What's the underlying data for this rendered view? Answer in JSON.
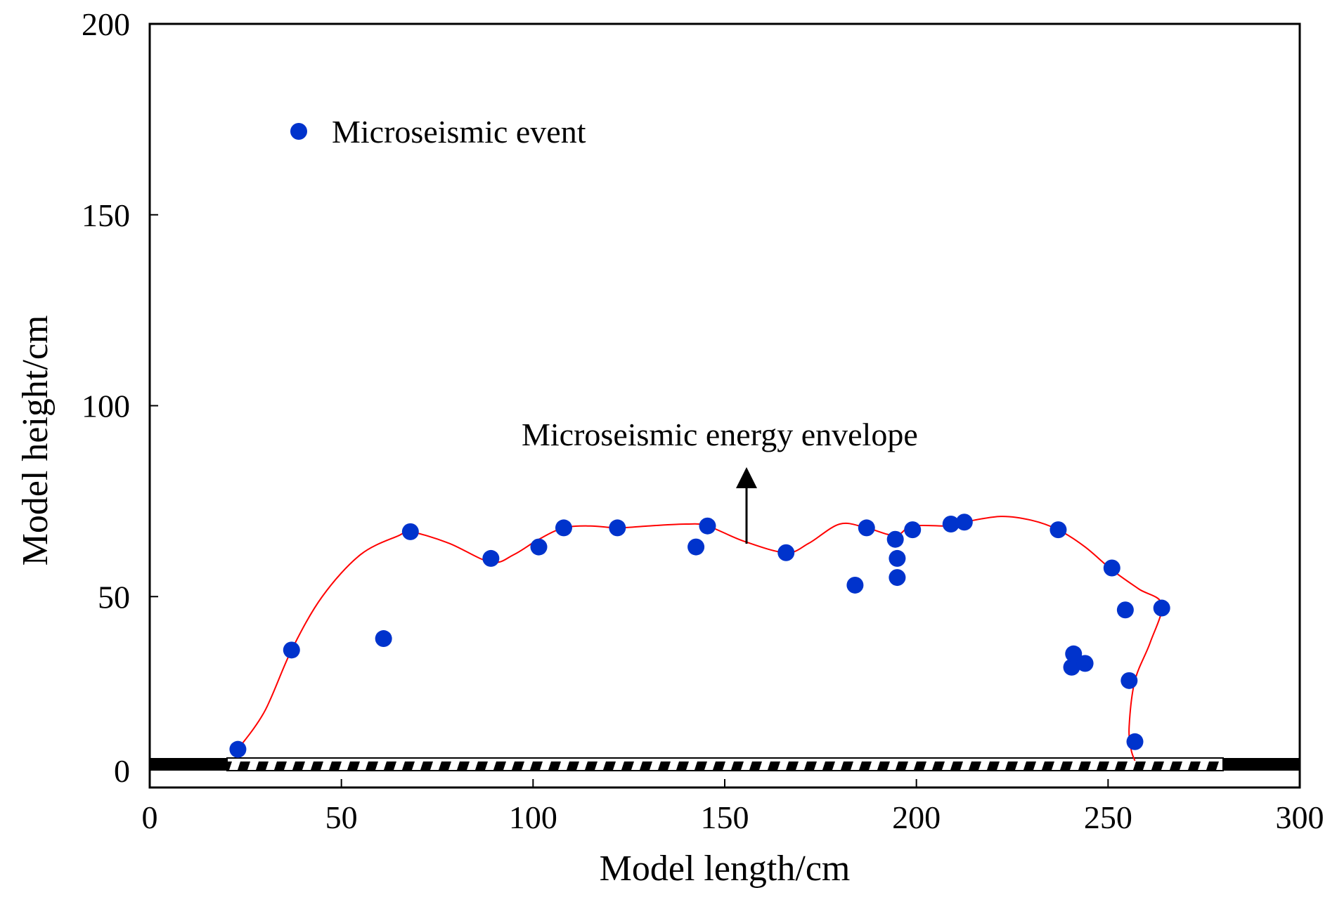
{
  "chart_data": {
    "type": "scatter",
    "title": "",
    "xlabel": "Model length/cm",
    "ylabel": "Model height/cm",
    "xlim": [
      0,
      300
    ],
    "ylim": [
      0,
      200
    ],
    "xticks": [
      0,
      50,
      100,
      150,
      200,
      250,
      300
    ],
    "yticks": [
      0,
      50,
      100,
      150,
      200
    ],
    "xtick_labels": [
      "0",
      "50",
      "100",
      "150",
      "200",
      "250",
      "300"
    ],
    "ytick_labels": [
      "0",
      "50",
      "100",
      "150",
      "200"
    ],
    "grid": false,
    "legend": {
      "entries": [
        "Microseismic event"
      ],
      "placement": "top-left"
    },
    "annotation": "Microseismic energy envelope",
    "marker_color": "#0033cc",
    "envelope_color": "#ff0000",
    "series": [
      {
        "name": "Microseismic event",
        "type": "scatter",
        "x": [
          23,
          37,
          61,
          68,
          89,
          101.5,
          108,
          122,
          142.5,
          145.5,
          166,
          184,
          187,
          194.5,
          195,
          195,
          199,
          209,
          212.5,
          237,
          240.5,
          241,
          244,
          251,
          254.5,
          255.5,
          257,
          264
        ],
        "y": [
          10,
          36,
          39,
          67,
          60,
          63,
          68,
          68,
          63,
          68.5,
          61.5,
          53,
          68,
          65,
          60,
          55,
          67.5,
          69,
          69.5,
          67.5,
          31.5,
          35,
          32.5,
          57.5,
          46.5,
          28,
          12,
          47
        ]
      },
      {
        "name": "Microseismic energy envelope",
        "type": "line",
        "x": [
          23,
          30,
          37,
          45,
          55,
          65,
          68,
          78,
          89,
          95,
          101.5,
          108,
          115,
          122,
          130,
          140,
          145.5,
          155,
          166,
          172,
          180,
          187,
          194.5,
          199,
          209,
          212.5,
          222,
          230,
          237,
          244,
          251,
          258,
          264,
          261,
          257,
          255.5,
          256,
          257
        ],
        "y": [
          10,
          20,
          36,
          50,
          61,
          66,
          67,
          64,
          59,
          61,
          65,
          68,
          68.5,
          68,
          68.5,
          69,
          68.5,
          64.5,
          61.5,
          64,
          69,
          68,
          66,
          68.5,
          68.5,
          69.5,
          71,
          70,
          67.5,
          63,
          57,
          52,
          48,
          38,
          28,
          16,
          10,
          7
        ]
      }
    ]
  }
}
